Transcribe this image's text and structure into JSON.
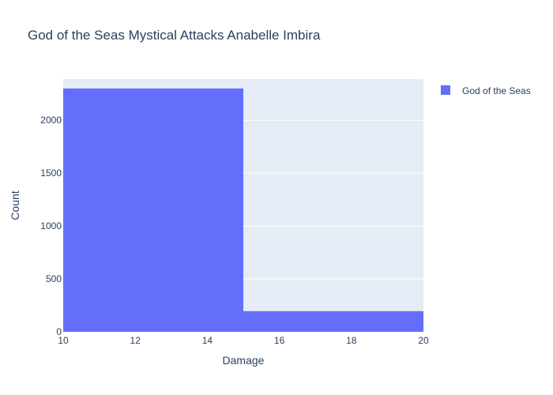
{
  "chart_data": {
    "type": "bar",
    "title": "God of the Seas Mystical Attacks Anabelle Imbira",
    "xlabel": "Damage",
    "ylabel": "Count",
    "xlim": [
      10,
      20
    ],
    "ylim": [
      0,
      2390
    ],
    "x_ticks": [
      10,
      12,
      14,
      16,
      18,
      20
    ],
    "y_ticks": [
      0,
      500,
      1000,
      1500,
      2000
    ],
    "grid": true,
    "legend_position": "top-right",
    "series": [
      {
        "name": "God of the Seas",
        "color": "#636efa",
        "bins": [
          {
            "x0": 10,
            "x1": 15,
            "value": 2300
          },
          {
            "x0": 15,
            "x1": 20,
            "value": 195
          }
        ]
      }
    ]
  },
  "colors": {
    "plot_background": "#e5ecf6",
    "gridline": "#ffffff",
    "text": "#2a3f5f"
  }
}
